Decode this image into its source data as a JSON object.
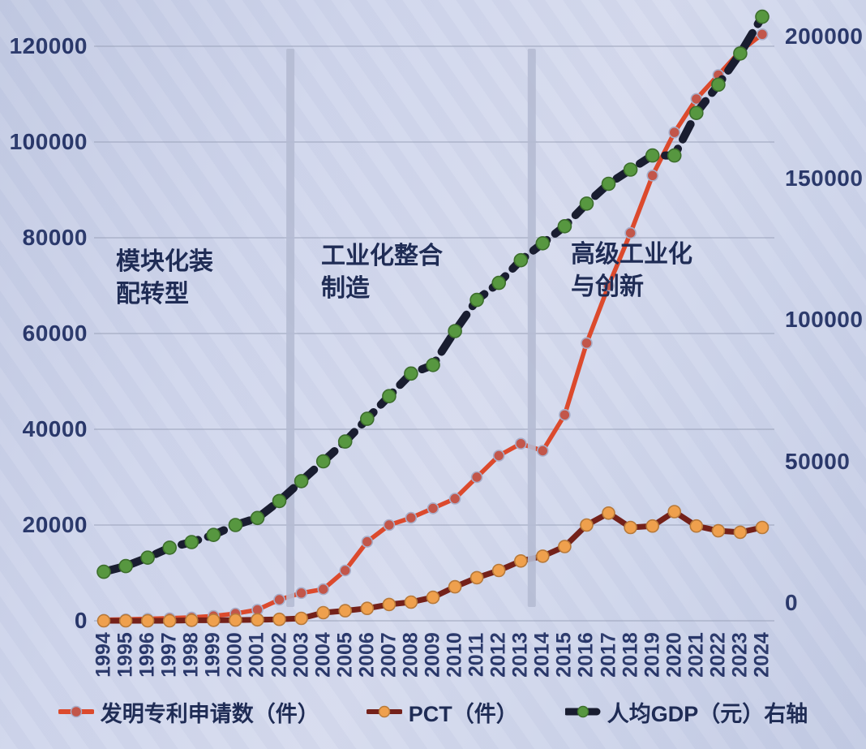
{
  "slide": {
    "background_color": "#cdd4ea",
    "text_color": "#1f2c55",
    "gridline_color": "#99a1b8",
    "divider_color": "#b5bbd3"
  },
  "chart_data": {
    "type": "line",
    "title": "",
    "xlabel": "",
    "ylabel_left": "",
    "ylabel_right": "",
    "grid": true,
    "legend_position": "bottom",
    "x": [
      1994,
      1995,
      1996,
      1997,
      1998,
      1999,
      2000,
      2001,
      2002,
      2003,
      2004,
      2005,
      2006,
      2007,
      2008,
      2009,
      2010,
      2011,
      2012,
      2013,
      2014,
      2015,
      2016,
      2017,
      2018,
      2019,
      2020,
      2021,
      2022,
      2023,
      2024
    ],
    "y_left": {
      "ticks": [
        0,
        20000,
        40000,
        60000,
        80000,
        100000,
        120000
      ],
      "min": 0,
      "max": 120000
    },
    "y_right": {
      "ticks": [
        0,
        50000,
        100000,
        150000,
        200000
      ],
      "min": 0,
      "max": 200000
    },
    "series": [
      {
        "name": "发明专利申请数（件）",
        "axis": "left",
        "style": "solid",
        "color": "#dc4a2d",
        "marker_color": "#c2564a",
        "marker_stroke": "#a8aec9",
        "values": [
          200,
          300,
          400,
          550,
          700,
          1000,
          1500,
          2300,
          4400,
          5800,
          6600,
          10500,
          16500,
          20000,
          21500,
          23500,
          25500,
          30000,
          34500,
          37000,
          35500,
          43000,
          58000,
          70000,
          81000,
          93000,
          102000,
          109000,
          114000,
          119000,
          122500
        ]
      },
      {
        "name": "PCT（件）",
        "axis": "left",
        "style": "solid",
        "color": "#74211a",
        "marker_color": "#efa04d",
        "marker_stroke": "#b7793a",
        "values": [
          0,
          0,
          0,
          0,
          100,
          100,
          150,
          200,
          300,
          500,
          1700,
          2100,
          2600,
          3400,
          3900,
          4900,
          7100,
          9000,
          10500,
          12500,
          13500,
          15500,
          20000,
          22500,
          19500,
          19800,
          22800,
          19800,
          18800,
          18500,
          19500
        ]
      },
      {
        "name": "人均GDP（元）右轴",
        "axis": "right",
        "style": "dashed",
        "color": "#191d30",
        "marker_color": "#579740",
        "marker_stroke": "#3c6e2c",
        "values": [
          11000,
          13000,
          16000,
          19500,
          21500,
          24000,
          27500,
          30000,
          36000,
          43000,
          50000,
          57000,
          65000,
          73000,
          81000,
          84000,
          96000,
          107000,
          113000,
          121000,
          127000,
          133000,
          141000,
          148000,
          153000,
          158000,
          158000,
          173000,
          183000,
          194000,
          207000
        ]
      }
    ],
    "annotations": [
      {
        "text": "模块化装\n配转型"
      },
      {
        "text": "工业化整合\n制造"
      },
      {
        "text": "高级工业化\n与创新"
      }
    ],
    "dividers": [
      {
        "after_year": 2002
      },
      {
        "after_year": 2013
      }
    ]
  }
}
